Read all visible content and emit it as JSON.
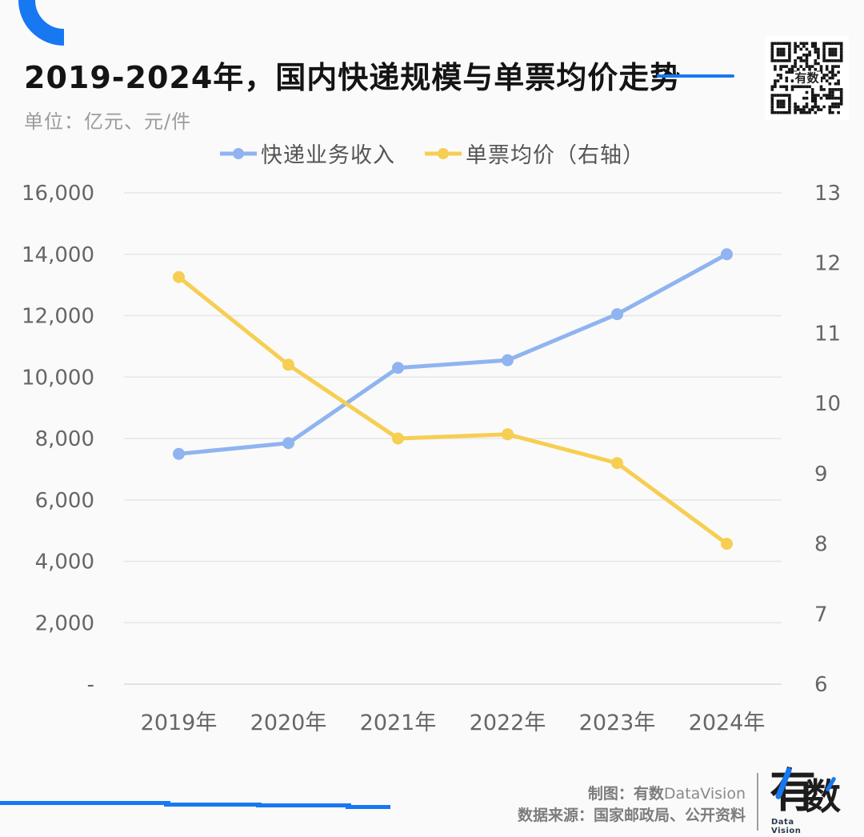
{
  "header": {
    "title": "2019-2024年，国内快递规模与单票均价走势",
    "subtitle": "单位：亿元、元/件",
    "qr_label": "有数"
  },
  "legend": [
    {
      "label": "快递业务收入",
      "color": "#8FB4F0"
    },
    {
      "label": "单票均价（右轴）",
      "color": "#F6CE52"
    }
  ],
  "chart_data": {
    "type": "line",
    "title": "2019-2024年，国内快递规模与单票均价走势",
    "unit_note": "单位：亿元、元/件",
    "categories": [
      "2019年",
      "2020年",
      "2021年",
      "2022年",
      "2023年",
      "2024年"
    ],
    "series": [
      {
        "name": "快递业务收入",
        "axis": "left",
        "color": "#8FB4F0",
        "values": [
          7500,
          7850,
          10300,
          10550,
          12050,
          14000
        ]
      },
      {
        "name": "单票均价（右轴）",
        "axis": "right",
        "color": "#F6CE52",
        "values": [
          11.8,
          10.55,
          9.5,
          9.56,
          9.15,
          8.0
        ]
      }
    ],
    "left_axis": {
      "min": 0,
      "max": 16000,
      "step": 2000,
      "zero_label": "-"
    },
    "right_axis": {
      "min": 6,
      "max": 13,
      "step": 1
    },
    "grid": true,
    "legend_position": "top"
  },
  "footer": {
    "credit1_bold": "制图：有数",
    "credit1_rest": "DataVision",
    "credit2": "数据来源：国家邮政局、公开资料",
    "logo_you": "有",
    "logo_shu": "数",
    "logo_sub": "Data Vision"
  },
  "colors": {
    "accent_blue": "#1778F2",
    "series_blue": "#8FB4F0",
    "series_yellow": "#F6CE52",
    "grid_line": "#E6E6E6",
    "axis_text": "#666666"
  }
}
